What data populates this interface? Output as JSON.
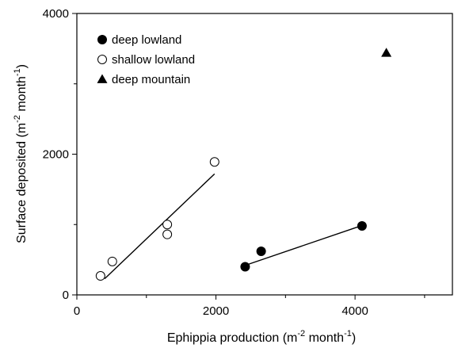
{
  "chart_data": {
    "type": "scatter",
    "xlabel": "Ephippia production (m",
    "xlabel_exp": "-2",
    "xlabel_unit": " month",
    "xlabel_unit_exp": "-1",
    "xlabel_close": ")",
    "ylabel": "Surface deposited (m",
    "ylabel_exp": "-2",
    "ylabel_unit": " month",
    "ylabel_unit_exp": "-1",
    "ylabel_close": ")",
    "xlim": [
      0,
      5400
    ],
    "ylim": [
      0,
      4000
    ],
    "x_ticks": [
      0,
      2000,
      4000
    ],
    "x_tick_labels": [
      "0",
      "2000",
      "4000"
    ],
    "y_ticks": [
      0,
      2000,
      4000
    ],
    "y_tick_labels": [
      "0",
      "2000",
      "4000"
    ],
    "x_minor_ticks": [
      1000,
      3000,
      5000
    ],
    "y_minor_ticks": [
      1000,
      3000
    ],
    "grid": false,
    "legend_position": "top-left",
    "series": [
      {
        "name": "deep lowland",
        "marker": "filled-circle",
        "points": [
          [
            2420,
            400
          ],
          [
            2650,
            620
          ],
          [
            4100,
            980
          ]
        ],
        "fit": [
          [
            2420,
            420
          ],
          [
            4080,
            980
          ]
        ]
      },
      {
        "name": "shallow lowland",
        "marker": "open-circle",
        "points": [
          [
            340,
            270
          ],
          [
            510,
            475
          ],
          [
            1300,
            860
          ],
          [
            1300,
            1000
          ],
          [
            1980,
            1890
          ]
        ],
        "fit": [
          [
            400,
            230
          ],
          [
            1980,
            1720
          ]
        ]
      },
      {
        "name": "deep mountain",
        "marker": "filled-triangle",
        "points": [
          [
            4450,
            3440
          ]
        ],
        "fit": null
      }
    ]
  }
}
